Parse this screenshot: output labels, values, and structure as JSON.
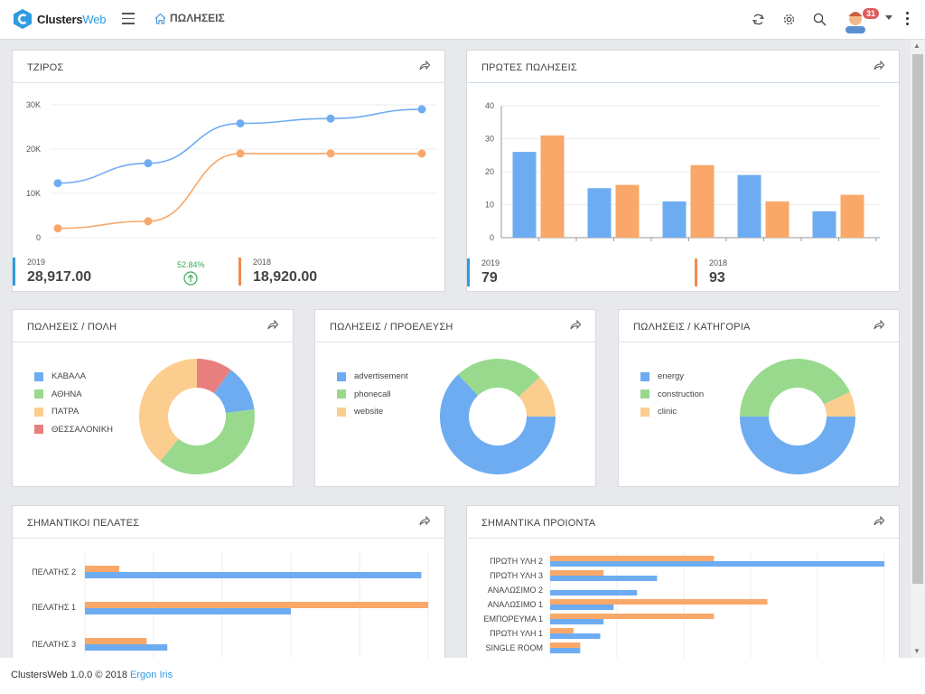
{
  "app": {
    "logo_clusters": "Clusters",
    "logo_web": "Web",
    "breadcrumb": "ΠΩΛΗΣΕΙΣ",
    "notification_count": "31"
  },
  "colors": {
    "blue": "#6eacf2",
    "orange": "#f9a86a",
    "green": "#98d98e",
    "peach": "#fbcd8f",
    "red": "#e77f7f",
    "accent_blue": "#2f9be0",
    "accent_orange": "#f08a4b"
  },
  "turnover": {
    "title": "ΤΖΙΡΟΣ",
    "y_ticks": [
      "30K",
      "20K",
      "10K",
      "0"
    ],
    "stat_left_year": "2019",
    "stat_left_value": "28,917.00",
    "change": "52.84%",
    "stat_right_year": "2018",
    "stat_right_value": "18,920.00"
  },
  "first_sales": {
    "title": "ΠΡΩΤΕΣ ΠΩΛΗΣΕΙΣ",
    "y_ticks": [
      "40",
      "30",
      "20",
      "10",
      "0"
    ],
    "stat_left_year": "2019",
    "stat_left_value": "79",
    "stat_right_year": "2018",
    "stat_right_value": "93"
  },
  "sales_city": {
    "title": "ΠΩΛΗΣΕΙΣ / ΠΟΛΗ",
    "legend": [
      "ΚΑΒΑΛΑ",
      "ΑΘΗΝΑ",
      "ΠΑΤΡΑ",
      "ΘΕΣΣΑΛΟΝΙΚΗ"
    ]
  },
  "sales_origin": {
    "title": "ΠΩΛΗΣΕΙΣ / ΠΡΟΕΛΕΥΣΗ",
    "legend": [
      "advertisement",
      "phonecall",
      "website"
    ]
  },
  "sales_category": {
    "title": "ΠΩΛΗΣΕΙΣ / ΚΑΤΗΓΟΡΙΑ",
    "legend": [
      "energy",
      "construction",
      "clinic"
    ]
  },
  "top_customers": {
    "title": "ΣΗΜΑΝΤΙΚΟΙ ΠΕΛΑΤΕΣ",
    "labels": [
      "ΠΕΛΑΤΗΣ 2",
      "ΠΕΛΑΤΗΣ 1",
      "ΠΕΛΑΤΗΣ 3"
    ]
  },
  "top_products": {
    "title": "ΣΗΜΑΝΤΙΚΑ ΠΡΟΙΟΝΤΑ",
    "labels": [
      "ΠΡΩΤΗ ΥΛΗ 2",
      "ΠΡΩΤΗ ΥΛΗ 3",
      "ΑΝΑΛΩΣΙΜΟ 2",
      "ΑΝΑΛΩΣΙΜΟ 1",
      "ΕΜΠΟΡΕΥΜΑ 1",
      "ΠΡΩΤΗ ΥΛΗ 1",
      "SINGLE ROOM"
    ]
  },
  "footer": {
    "text": "ClustersWeb 1.0.0 © 2018 ",
    "link": "Ergon Iris"
  },
  "chart_data": [
    {
      "type": "line",
      "id": "turnover",
      "x": [
        1,
        2,
        3,
        4,
        5
      ],
      "ylim": [
        0,
        30000
      ],
      "series": [
        {
          "values": [
            12300,
            16800,
            25800,
            26900,
            29000
          ]
        },
        {
          "values": [
            2100,
            3700,
            19000,
            19000,
            19000
          ]
        }
      ]
    },
    {
      "type": "bar",
      "id": "first_sales",
      "ylim": [
        0,
        40
      ],
      "series": [
        {
          "values": [
            26,
            15,
            11,
            19,
            8
          ]
        },
        {
          "values": [
            31,
            16,
            22,
            11,
            13
          ]
        }
      ]
    },
    {
      "type": "pie",
      "id": "sales_city",
      "values": [
        13,
        38,
        39,
        10
      ]
    },
    {
      "type": "pie",
      "id": "sales_origin",
      "values": [
        63,
        25,
        12
      ]
    },
    {
      "type": "pie",
      "id": "sales_category",
      "values": [
        50,
        43,
        7
      ]
    },
    {
      "type": "bar",
      "id": "top_customers",
      "orientation": "horizontal",
      "xlim": [
        0,
        100
      ],
      "series": [
        {
          "values": [
            98,
            60,
            24
          ]
        },
        {
          "values": [
            10,
            100,
            18
          ]
        }
      ]
    },
    {
      "type": "bar",
      "id": "top_products",
      "orientation": "horizontal",
      "xlim": [
        0,
        100
      ],
      "series": [
        {
          "values": [
            100,
            32,
            26,
            19,
            16,
            15,
            9
          ]
        },
        {
          "values": [
            49,
            16,
            0,
            65,
            49,
            7,
            9
          ]
        }
      ]
    }
  ]
}
